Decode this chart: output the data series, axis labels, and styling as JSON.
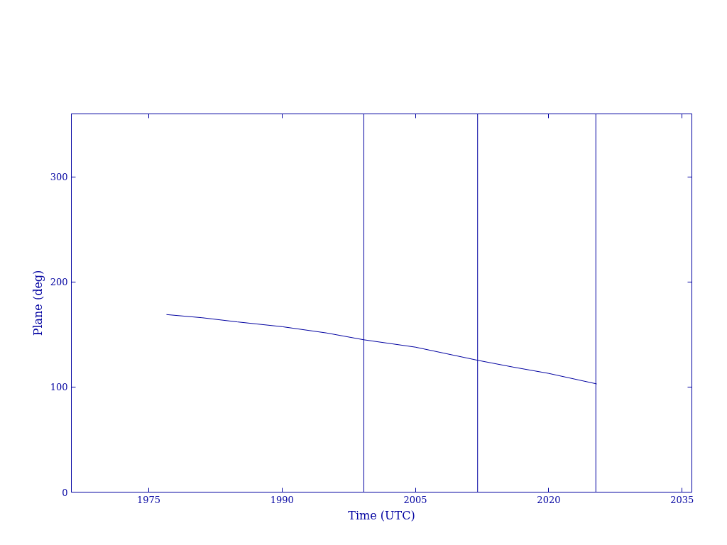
{
  "chart_data": {
    "type": "line",
    "xlabel": "Time (UTC)",
    "ylabel": "Plane (deg)",
    "x": [
      1977.0,
      1981,
      1985,
      1990,
      1995,
      1999.2,
      2005,
      2012.0,
      2016,
      2020,
      2025.4
    ],
    "series": [
      {
        "color": "#0000a0",
        "values": [
          169,
          166,
          162,
          157.5,
          151.5,
          145,
          138,
          125.5,
          119,
          113,
          103
        ]
      }
    ],
    "xlim": [
      1966.3,
      2036.1
    ],
    "xticks": [
      1975,
      1990,
      2005,
      2020,
      2035
    ],
    "ylim": [
      0,
      360
    ],
    "yticks": [
      0,
      100,
      200,
      300
    ],
    "ref_lines": [
      {
        "axis": "x",
        "value": 1999.2,
        "color": "#0000a0"
      },
      {
        "axis": "x",
        "value": 2012.0,
        "color": "#0000a0"
      },
      {
        "axis": "x",
        "value": 2025.3,
        "color": "#0000a0"
      }
    ],
    "grid": false,
    "marker": "none",
    "line_style": "solid"
  }
}
